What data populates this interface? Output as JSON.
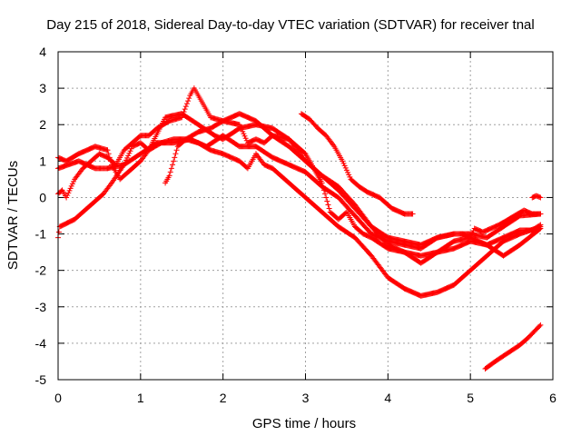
{
  "chart_data": {
    "type": "scatter",
    "title": "Day 215 of 2018, Sidereal Day-to-day VTEC variation (SDTVAR) for receiver tnal",
    "xlabel": "GPS time / hours",
    "ylabel": "SDTVAR / TECUs",
    "xlim": [
      0,
      6
    ],
    "ylim": [
      -5,
      4
    ],
    "xticks": [
      0,
      1,
      2,
      3,
      4,
      5,
      6
    ],
    "yticks": [
      -5,
      -4,
      -3,
      -2,
      -1,
      0,
      1,
      2,
      3,
      4
    ],
    "xtick_labels": [
      "0",
      "1",
      "2",
      "3",
      "4",
      "5",
      "6"
    ],
    "ytick_labels": [
      "-5",
      "-4",
      "-3",
      "-2",
      "-1",
      "0",
      "1",
      "2",
      "3",
      "4"
    ],
    "grid": true,
    "legend": "none",
    "marker": "+",
    "color": "#ff0000",
    "series": [
      {
        "name": "track-1",
        "points": [
          [
            0.0,
            0.8
          ],
          [
            0.25,
            1.0
          ],
          [
            0.45,
            0.8
          ],
          [
            0.6,
            0.8
          ],
          [
            0.8,
            0.9
          ],
          [
            1.0,
            1.2
          ],
          [
            1.2,
            1.5
          ],
          [
            1.4,
            1.5
          ],
          [
            1.6,
            1.6
          ],
          [
            1.8,
            1.4
          ],
          [
            2.0,
            1.7
          ],
          [
            2.2,
            1.4
          ],
          [
            2.4,
            1.4
          ],
          [
            2.6,
            1.1
          ],
          [
            2.8,
            0.9
          ],
          [
            3.0,
            0.7
          ],
          [
            3.2,
            0.3
          ],
          [
            3.4,
            0.0
          ],
          [
            3.6,
            -0.5
          ],
          [
            3.8,
            -1.0
          ],
          [
            4.0,
            -1.2
          ],
          [
            4.2,
            -1.3
          ],
          [
            4.4,
            -1.4
          ],
          [
            4.6,
            -1.1
          ],
          [
            4.8,
            -1.0
          ],
          [
            5.0,
            -1.0
          ],
          [
            5.2,
            -1.1
          ],
          [
            5.4,
            -0.8
          ],
          [
            5.6,
            -0.5
          ],
          [
            5.85,
            -0.45
          ]
        ]
      },
      {
        "name": "track-2",
        "points": [
          [
            0.0,
            1.1
          ],
          [
            0.1,
            1.0
          ],
          [
            0.25,
            1.2
          ],
          [
            0.45,
            1.4
          ],
          [
            0.6,
            1.3
          ],
          [
            0.65,
            0.9
          ],
          [
            0.75,
            0.5
          ],
          [
            0.85,
            0.7
          ],
          [
            1.0,
            1.0
          ],
          [
            1.1,
            1.3
          ],
          [
            1.3,
            2.2
          ],
          [
            1.5,
            2.3
          ],
          [
            1.7,
            2.0
          ],
          [
            1.9,
            1.7
          ],
          [
            2.0,
            1.6
          ],
          [
            2.2,
            1.9
          ],
          [
            2.4,
            2.0
          ],
          [
            2.6,
            1.9
          ],
          [
            2.8,
            1.6
          ],
          [
            3.0,
            1.0
          ],
          [
            3.2,
            0.6
          ],
          [
            3.4,
            0.3
          ],
          [
            3.6,
            -0.2
          ],
          [
            3.8,
            -0.8
          ],
          [
            4.0,
            -1.3
          ],
          [
            4.2,
            -1.5
          ],
          [
            4.4,
            -1.6
          ],
          [
            4.6,
            -1.5
          ],
          [
            4.8,
            -1.4
          ],
          [
            5.0,
            -1.2
          ],
          [
            5.2,
            -1.3
          ],
          [
            5.4,
            -1.6
          ],
          [
            5.6,
            -1.3
          ],
          [
            5.85,
            -0.85
          ]
        ]
      },
      {
        "name": "track-3",
        "points": [
          [
            0.0,
            0.1
          ],
          [
            0.05,
            0.2
          ],
          [
            0.1,
            0.0
          ],
          [
            0.2,
            0.5
          ],
          [
            0.3,
            0.8
          ],
          [
            0.4,
            1.0
          ],
          [
            0.5,
            1.2
          ],
          [
            0.6,
            1.1
          ],
          [
            0.7,
            0.9
          ],
          [
            0.8,
            1.3
          ],
          [
            0.9,
            1.5
          ],
          [
            1.0,
            1.7
          ],
          [
            1.1,
            1.7
          ],
          [
            1.2,
            1.9
          ],
          [
            1.35,
            2.1
          ],
          [
            1.5,
            2.2
          ],
          [
            1.6,
            2.8
          ],
          [
            1.65,
            3.0
          ],
          [
            1.75,
            2.6
          ],
          [
            1.85,
            2.2
          ],
          [
            2.0,
            2.1
          ],
          [
            2.2,
            2.0
          ],
          [
            2.3,
            1.5
          ],
          [
            2.4,
            1.6
          ],
          [
            2.5,
            1.5
          ],
          [
            2.6,
            1.7
          ],
          [
            2.8,
            1.6
          ],
          [
            3.0,
            1.2
          ],
          [
            3.2,
            0.4
          ],
          [
            3.3,
            -0.4
          ],
          [
            3.4,
            -0.6
          ],
          [
            3.5,
            -0.4
          ],
          [
            3.6,
            -0.8
          ],
          [
            3.7,
            -1.0
          ],
          [
            3.8,
            -1.1
          ],
          [
            4.0,
            -1.4
          ],
          [
            4.2,
            -1.5
          ],
          [
            4.4,
            -1.8
          ],
          [
            4.6,
            -1.5
          ],
          [
            4.8,
            -1.2
          ],
          [
            5.0,
            -1.1
          ],
          [
            5.2,
            -1.3
          ],
          [
            5.4,
            -1.1
          ],
          [
            5.6,
            -0.9
          ],
          [
            5.75,
            -0.9
          ],
          [
            5.85,
            -0.75
          ]
        ]
      },
      {
        "name": "track-4",
        "points": [
          [
            0.0,
            -1.1
          ],
          [
            0.02,
            -0.8
          ],
          [
            0.2,
            -0.6
          ],
          [
            0.4,
            -0.2
          ],
          [
            0.55,
            0.1
          ],
          [
            0.65,
            0.4
          ],
          [
            0.8,
            0.9
          ],
          [
            0.9,
            1.4
          ],
          [
            1.0,
            1.5
          ],
          [
            1.1,
            1.3
          ],
          [
            1.25,
            1.5
          ],
          [
            1.4,
            1.6
          ],
          [
            1.55,
            1.6
          ],
          [
            1.7,
            1.5
          ],
          [
            1.85,
            1.3
          ],
          [
            2.0,
            1.2
          ],
          [
            2.1,
            1.1
          ],
          [
            2.2,
            1.0
          ],
          [
            2.3,
            0.8
          ],
          [
            2.4,
            1.2
          ],
          [
            2.5,
            0.9
          ],
          [
            2.6,
            0.8
          ],
          [
            2.8,
            0.4
          ],
          [
            3.0,
            0.0
          ],
          [
            3.2,
            -0.4
          ],
          [
            3.4,
            -0.8
          ],
          [
            3.6,
            -1.1
          ],
          [
            3.8,
            -1.6
          ],
          [
            4.0,
            -2.2
          ],
          [
            4.2,
            -2.5
          ],
          [
            4.4,
            -2.7
          ],
          [
            4.6,
            -2.6
          ],
          [
            4.8,
            -2.4
          ],
          [
            5.0,
            -2.0
          ],
          [
            5.2,
            -1.6
          ],
          [
            5.4,
            -1.2
          ],
          [
            5.6,
            -1.0
          ],
          [
            5.85,
            -0.8
          ]
        ]
      },
      {
        "name": "track-5",
        "points": [
          [
            1.3,
            0.4
          ],
          [
            1.35,
            0.6
          ],
          [
            1.4,
            1.0
          ],
          [
            1.45,
            1.4
          ],
          [
            1.55,
            1.6
          ],
          [
            1.7,
            1.8
          ],
          [
            1.85,
            1.9
          ],
          [
            2.0,
            2.1
          ],
          [
            2.2,
            2.3
          ],
          [
            2.4,
            2.1
          ],
          [
            2.6,
            1.7
          ],
          [
            2.8,
            1.4
          ],
          [
            3.0,
            1.0
          ],
          [
            3.2,
            0.6
          ],
          [
            3.4,
            0.2
          ],
          [
            3.6,
            -0.3
          ],
          [
            3.8,
            -0.8
          ],
          [
            4.0,
            -1.1
          ],
          [
            4.2,
            -1.2
          ],
          [
            4.4,
            -1.3
          ],
          [
            4.6,
            -1.1
          ],
          [
            4.8,
            -1.0
          ]
        ]
      },
      {
        "name": "track-6",
        "points": [
          [
            2.95,
            2.3
          ],
          [
            3.05,
            2.15
          ],
          [
            3.15,
            1.9
          ],
          [
            3.25,
            1.7
          ],
          [
            3.35,
            1.4
          ],
          [
            3.45,
            1.0
          ],
          [
            3.55,
            0.5
          ],
          [
            3.65,
            0.3
          ],
          [
            3.75,
            0.15
          ],
          [
            3.9,
            0.0
          ],
          [
            4.05,
            -0.3
          ],
          [
            4.2,
            -0.45
          ],
          [
            4.3,
            -0.45
          ]
        ]
      },
      {
        "name": "track-7",
        "points": [
          [
            4.9,
            -1.0
          ],
          [
            5.0,
            -1.1
          ],
          [
            5.05,
            -0.85
          ],
          [
            5.15,
            -0.95
          ],
          [
            5.25,
            -0.85
          ],
          [
            5.35,
            -0.75
          ],
          [
            5.5,
            -0.55
          ],
          [
            5.65,
            -0.35
          ],
          [
            5.75,
            -0.45
          ],
          [
            5.85,
            -0.45
          ]
        ]
      },
      {
        "name": "track-8",
        "points": [
          [
            5.75,
            0.0
          ],
          [
            5.8,
            0.05
          ],
          [
            5.85,
            0.0
          ]
        ]
      },
      {
        "name": "track-9",
        "points": [
          [
            5.18,
            -4.7
          ],
          [
            5.3,
            -4.5
          ],
          [
            5.4,
            -4.35
          ],
          [
            5.5,
            -4.2
          ],
          [
            5.6,
            -4.05
          ],
          [
            5.7,
            -3.85
          ],
          [
            5.85,
            -3.5
          ]
        ]
      }
    ]
  }
}
